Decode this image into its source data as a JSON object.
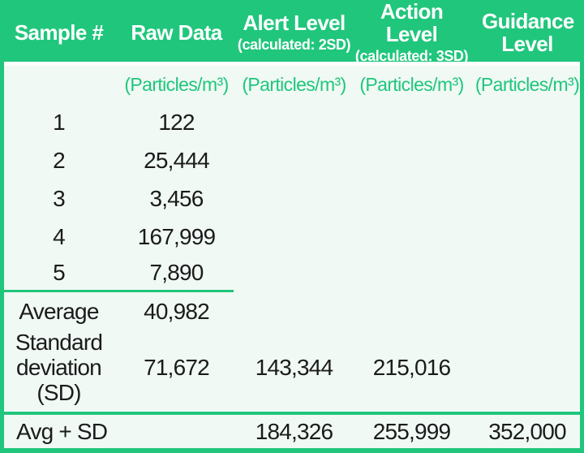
{
  "colors": {
    "green": "#20c67c",
    "body_bg": "#f0f9f4",
    "header_text": "#ffffff",
    "value_text": "#1b1b1b"
  },
  "header": {
    "columns": [
      {
        "label": "Sample #",
        "sub": ""
      },
      {
        "label": "Raw Data",
        "sub": ""
      },
      {
        "label": "Alert Level",
        "sub": "(calculated: 2SD)"
      },
      {
        "label": "Action Level",
        "sub": "(calculated: 3SD)"
      },
      {
        "label": "Guidance Level",
        "sub": ""
      }
    ]
  },
  "units": {
    "unit": "(Particles/m³)"
  },
  "samples": [
    {
      "id": "1",
      "raw": "122"
    },
    {
      "id": "2",
      "raw": "25,444"
    },
    {
      "id": "3",
      "raw": "3,456"
    },
    {
      "id": "4",
      "raw": "167,999"
    },
    {
      "id": "5",
      "raw": "7,890"
    }
  ],
  "summary": {
    "average": {
      "label": "Average",
      "raw": "40,982"
    },
    "sd": {
      "label": "Standard deviation (SD)",
      "raw": "71,672",
      "alert": "143,344",
      "action": "215,016"
    },
    "avg_plus_sd": {
      "label": "Avg + SD",
      "alert": "184,326",
      "action": "255,999",
      "guidance": "352,000"
    }
  },
  "chart_data": {
    "type": "table",
    "columns": [
      "Sample #",
      "Raw Data (Particles/m³)",
      "Alert Level (calculated: 2SD) (Particles/m³)",
      "Action Level (calculated: 3SD) (Particles/m³)",
      "Guidance Level (Particles/m³)"
    ],
    "rows": [
      [
        "1",
        122,
        null,
        null,
        null
      ],
      [
        "2",
        25444,
        null,
        null,
        null
      ],
      [
        "3",
        3456,
        null,
        null,
        null
      ],
      [
        "4",
        167999,
        null,
        null,
        null
      ],
      [
        "5",
        7890,
        null,
        null,
        null
      ],
      [
        "Average",
        40982,
        null,
        null,
        null
      ],
      [
        "Standard deviation (SD)",
        71672,
        143344,
        215016,
        null
      ],
      [
        "Avg + SD",
        null,
        184326,
        255999,
        352000
      ]
    ]
  }
}
